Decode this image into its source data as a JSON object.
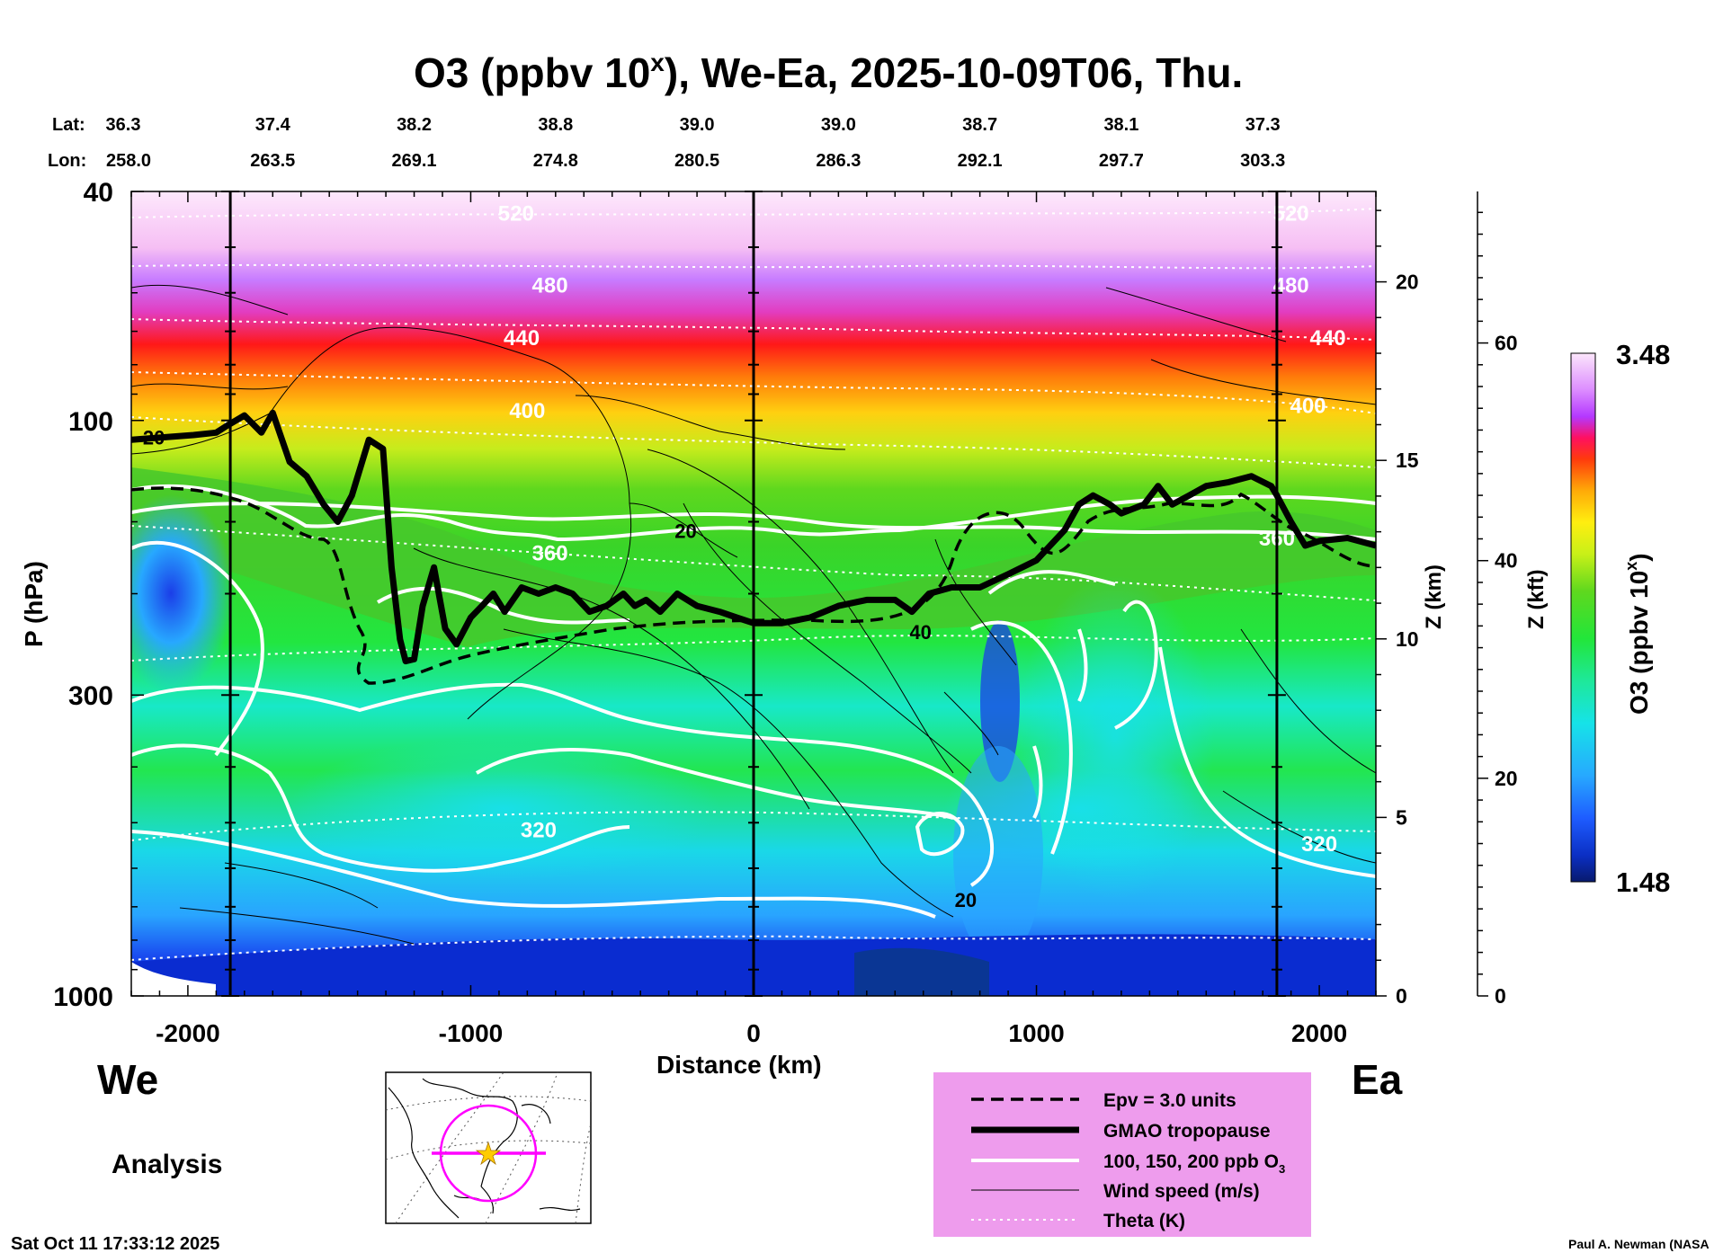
{
  "chart_data": {
    "type": "heatmap",
    "title_main": "O3 (ppbv 10",
    "title_sup": "x",
    "title_rest": "), We-Ea, 2025-10-09T06, Thu.",
    "xlabel": "Distance (km)",
    "ylabel": "P (hPa)",
    "zkm_label": "Z (km)",
    "zkft_label": "Z (kft)",
    "colorbar_label_main": "O3 (ppbv 10",
    "colorbar_label_sup": "x",
    "colorbar_label_end": ")",
    "colorbar_range": [
      1.48,
      3.48
    ],
    "colorbar_max_label": "3.48",
    "colorbar_min_label": "1.48",
    "xlim": [
      -2200,
      2200
    ],
    "ylim_hpa": [
      1000,
      40
    ],
    "x_ticks": [
      -2000,
      -1000,
      0,
      1000,
      2000
    ],
    "x_tick_labels": [
      "-2000",
      "-1000",
      "0",
      "1000",
      "2000"
    ],
    "p_ticks": [
      1000,
      300,
      100,
      40
    ],
    "p_tick_labels": [
      "1000",
      "300",
      "100",
      "40"
    ],
    "zkm_ticks": [
      0,
      5,
      10,
      15,
      20
    ],
    "zkm_tick_labels": [
      "0",
      "5",
      "10",
      "15",
      "20"
    ],
    "zkft_ticks": [
      0,
      20,
      40,
      60
    ],
    "zkft_tick_labels": [
      "0",
      "20",
      "40",
      "60"
    ],
    "lat_label": "Lat:",
    "lon_label": "Lon:",
    "section_points": [
      {
        "x": -2200,
        "lat": "36.3",
        "lon": "258.0"
      },
      {
        "x": -1700,
        "lat": "37.4",
        "lon": "263.5"
      },
      {
        "x": -1200,
        "lat": "38.2",
        "lon": "269.1"
      },
      {
        "x": -700,
        "lat": "38.8",
        "lon": "274.8"
      },
      {
        "x": -200,
        "lat": "39.0",
        "lon": "280.5"
      },
      {
        "x": 300,
        "lat": "39.0",
        "lon": "286.3"
      },
      {
        "x": 800,
        "lat": "38.7",
        "lon": "292.1"
      },
      {
        "x": 1300,
        "lat": "38.1",
        "lon": "297.7"
      },
      {
        "x": 1800,
        "lat": "37.3",
        "lon": "303.3"
      }
    ],
    "vertical_markers_km": [
      -1850,
      0,
      1850
    ],
    "theta_labels": [
      {
        "text": "520",
        "x": -840,
        "p": 45
      },
      {
        "text": "480",
        "x": -720,
        "p": 60
      },
      {
        "text": "440",
        "x": -820,
        "p": 74
      },
      {
        "text": "400",
        "x": -800,
        "p": 99
      },
      {
        "text": "360",
        "x": -720,
        "p": 175
      },
      {
        "text": "320",
        "x": -760,
        "p": 530
      },
      {
        "text": "520",
        "x": 1900,
        "p": 45
      },
      {
        "text": "480",
        "x": 1900,
        "p": 60
      },
      {
        "text": "440",
        "x": 2030,
        "p": 74
      },
      {
        "text": "400",
        "x": 1960,
        "p": 97
      },
      {
        "text": "360",
        "x": 1850,
        "p": 165
      },
      {
        "text": "320",
        "x": 2000,
        "p": 560
      }
    ],
    "wind_labels": [
      {
        "text": "20",
        "x": -2120,
        "p": 110
      },
      {
        "text": "20",
        "x": -240,
        "p": 160
      },
      {
        "text": "40",
        "x": 590,
        "p": 240
      },
      {
        "text": "20",
        "x": 750,
        "p": 700
      }
    ],
    "tropopause": {
      "x": [
        -2200,
        -1980,
        -1900,
        -1860,
        -1800,
        -1740,
        -1700,
        -1640,
        -1580,
        -1520,
        -1470,
        -1420,
        -1360,
        -1310,
        -1280,
        -1250,
        -1230,
        -1200,
        -1170,
        -1130,
        -1090,
        -1050,
        -1000,
        -960,
        -920,
        -880,
        -820,
        -760,
        -700,
        -640,
        -580,
        -520,
        -460,
        -420,
        -380,
        -330,
        -270,
        -200,
        -120,
        -60,
        0,
        100,
        200,
        300,
        400,
        500,
        560,
        620,
        700,
        800,
        900,
        1000,
        1100,
        1150,
        1200,
        1260,
        1300,
        1380,
        1430,
        1480,
        1540,
        1600,
        1680,
        1760,
        1830,
        1850,
        1900,
        1950,
        2000,
        2100,
        2200
      ],
      "p": [
        108,
        106,
        105,
        102,
        98,
        105,
        97,
        118,
        125,
        140,
        150,
        135,
        108,
        112,
        180,
        240,
        262,
        260,
        210,
        180,
        230,
        245,
        220,
        210,
        200,
        215,
        195,
        200,
        195,
        200,
        215,
        210,
        200,
        210,
        205,
        215,
        200,
        210,
        215,
        220,
        225,
        225,
        220,
        210,
        205,
        205,
        215,
        200,
        195,
        195,
        185,
        175,
        155,
        140,
        135,
        140,
        145,
        140,
        130,
        140,
        135,
        130,
        128,
        125,
        130,
        135,
        150,
        165,
        162,
        160,
        165
      ]
    },
    "series": [
      {
        "name": "Epv = 3.0 units",
        "style": "dashed"
      },
      {
        "name": "GMAO tropopause",
        "style": "thick"
      },
      {
        "name": "100, 150, 200 ppb O",
        "name_sub": "3",
        "style": "white"
      },
      {
        "name": "Wind speed (m/s)",
        "style": "thin"
      },
      {
        "name": "Theta (K)",
        "style": "dotted"
      }
    ]
  },
  "labels": {
    "we": "We",
    "ea": "Ea",
    "analysis": "Analysis",
    "timestamp": "Sat Oct 11 17:33:12 2025",
    "credit": "Paul A. Newman (NASA"
  },
  "colors": {
    "legend_bg": "#ee9ced",
    "map_circle": "#ff00ff",
    "map_star": "#ffcc00"
  }
}
